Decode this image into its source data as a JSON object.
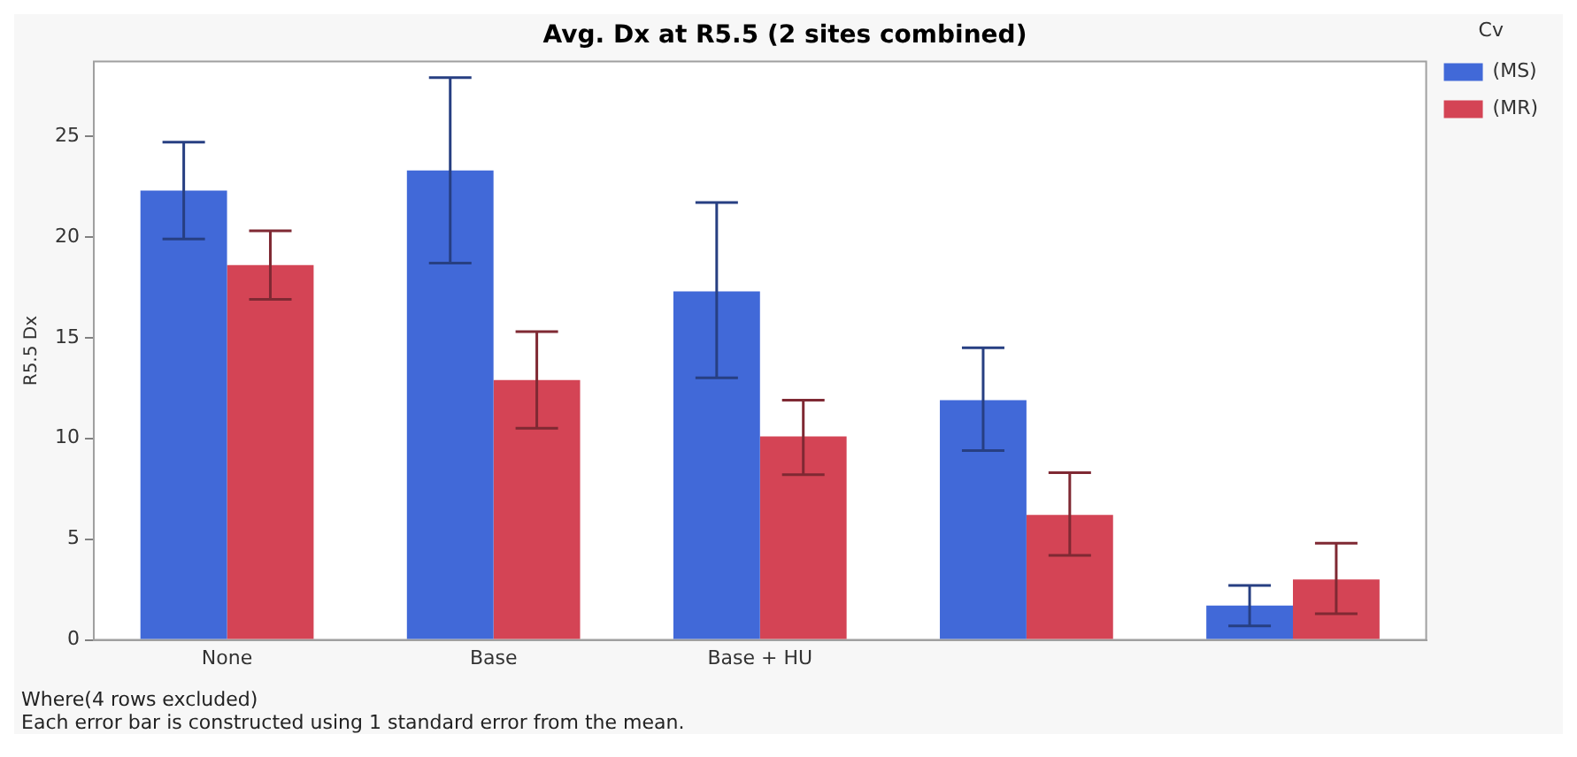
{
  "chart_data": {
    "type": "bar",
    "title": "Avg. Dx at R5.5 (2 sites combined)",
    "ylabel": "R5.5 Dx",
    "legend_title": "Cv",
    "legend": "top right",
    "grid": false,
    "categories": [
      "None",
      "Base",
      "Base + HU",
      null,
      null
    ],
    "series": [
      {
        "name": "(MS)",
        "color": "#4169d8",
        "values": [
          22.3,
          23.3,
          17.3,
          11.9,
          1.7
        ],
        "errors": [
          [
            19.9,
            24.7
          ],
          [
            18.7,
            27.9
          ],
          [
            13.0,
            21.7
          ],
          [
            9.4,
            14.5
          ],
          [
            0.7,
            2.7
          ]
        ]
      },
      {
        "name": "(MR)",
        "color": "#d44455",
        "values": [
          18.6,
          12.9,
          10.1,
          6.2,
          3.0
        ],
        "errors": [
          [
            16.9,
            20.3
          ],
          [
            10.5,
            15.3
          ],
          [
            8.2,
            11.9
          ],
          [
            4.2,
            8.3
          ],
          [
            1.3,
            4.8
          ]
        ]
      }
    ],
    "ylim": [
      0,
      28.7
    ],
    "yticks": [
      0,
      5,
      10,
      15,
      20,
      25
    ],
    "annotations": [
      "Where(4 rows excluded)",
      "Each error bar is constructed using 1 standard error from the mean."
    ]
  }
}
